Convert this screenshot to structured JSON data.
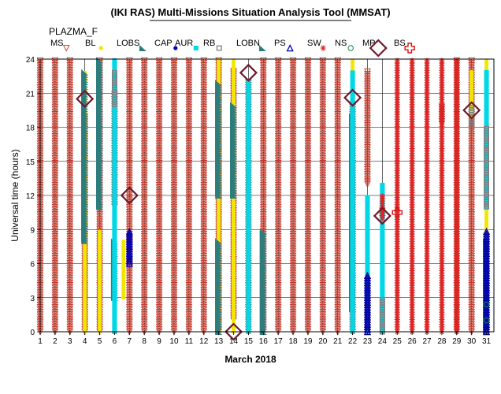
{
  "page": {
    "title": "(IKI RAS) Multi-Missions Situation Analysis Tool (MMSAT)",
    "subtitle": "PLAZMA_F"
  },
  "chart_data": {
    "type": "scatter",
    "title": "(IKI RAS) Multi-Missions Situation Analysis Tool (MMSAT)",
    "subtitle": "PLAZMA_F",
    "xlabel": "March 2018",
    "ylabel": "Universal time (hours)",
    "xlim": [
      1,
      31.5
    ],
    "ylim": [
      0,
      24
    ],
    "x_ticks": [
      "1",
      "2",
      "3",
      "4",
      "5",
      "6",
      "7",
      "8",
      "9",
      "10",
      "11",
      "12",
      "13",
      "14",
      "15",
      "16",
      "17",
      "18",
      "19",
      "20",
      "21",
      "22",
      "23",
      "24",
      "25",
      "26",
      "27",
      "28",
      "29",
      "30",
      "31"
    ],
    "y_ticks": [
      "0",
      "3",
      "6",
      "9",
      "12",
      "15",
      "18",
      "21",
      "24"
    ],
    "grid": true,
    "legend_position": "top",
    "legend": [
      {
        "key": "MS",
        "label": "MS",
        "marker": "triangle-down-open",
        "color": "#c0392b"
      },
      {
        "key": "BL",
        "label": "BL",
        "marker": "circle-filled",
        "color": "#f2e600"
      },
      {
        "key": "LOBS",
        "label": "LOBS",
        "marker": "triangle-filled",
        "color": "#2e7d7d"
      },
      {
        "key": "CAP",
        "label": "CAP",
        "marker": "circle-filled",
        "color": "#0000cc"
      },
      {
        "key": "AUR",
        "label": "AUR",
        "marker": "square-filled",
        "color": "#00d8e8"
      },
      {
        "key": "RB",
        "label": "RB",
        "marker": "square-open",
        "color": "#808080"
      },
      {
        "key": "LOBN",
        "label": "LOBN",
        "marker": "triangle-filled",
        "color": "#2e7d7d"
      },
      {
        "key": "PS",
        "label": "PS",
        "marker": "triangle-up-open",
        "color": "#0000aa"
      },
      {
        "key": "SW",
        "label": "SW",
        "marker": "asterisk",
        "color": "#dd2222"
      },
      {
        "key": "NS",
        "label": "NS",
        "marker": "circle-open",
        "color": "#0a8a4a"
      },
      {
        "key": "MP",
        "label": "MP",
        "marker": "diamond-open",
        "color": "#6b1a2a"
      },
      {
        "key": "BS",
        "label": "BS",
        "marker": "cross-open",
        "color": "#dd1111"
      }
    ],
    "series": [
      {
        "key": "MS",
        "segments": [
          [
            1,
            0,
            24
          ],
          [
            2,
            0,
            24
          ],
          [
            3,
            0,
            24
          ],
          [
            4,
            0,
            19
          ],
          [
            5,
            0,
            24
          ],
          [
            6,
            11,
            21
          ],
          [
            7,
            0,
            24
          ],
          [
            8,
            0,
            24
          ],
          [
            9,
            0,
            24
          ],
          [
            10,
            0,
            24
          ],
          [
            11,
            0,
            24
          ],
          [
            12,
            0,
            24
          ],
          [
            13,
            0,
            24
          ],
          [
            14,
            1,
            23
          ],
          [
            15,
            0,
            22
          ],
          [
            16,
            0,
            24
          ],
          [
            17,
            0,
            24
          ],
          [
            18,
            0,
            24
          ],
          [
            19,
            0,
            24
          ],
          [
            20,
            0,
            24
          ],
          [
            21,
            0,
            24
          ],
          [
            22,
            0,
            20
          ],
          [
            23,
            13,
            23
          ],
          [
            24,
            10,
            10.7
          ],
          [
            28,
            18.3,
            19.8
          ],
          [
            29,
            0,
            24
          ],
          [
            30,
            0,
            24
          ]
        ]
      },
      {
        "key": "BL",
        "segments": [
          [
            4,
            0,
            23
          ],
          [
            5,
            0,
            9
          ],
          [
            6,
            9,
            12
          ],
          [
            6.6,
            3,
            8
          ],
          [
            13,
            0,
            24
          ],
          [
            14,
            0,
            24
          ],
          [
            22,
            3,
            24
          ],
          [
            24,
            0,
            7
          ],
          [
            30,
            19,
            23
          ],
          [
            31,
            0,
            24
          ]
        ]
      },
      {
        "key": "LOBS",
        "segments": [
          [
            6,
            3,
            8
          ],
          [
            13,
            0,
            8
          ],
          [
            14,
            12,
            19
          ]
        ]
      },
      {
        "key": "LOBN",
        "segments": [
          [
            4,
            8,
            23
          ],
          [
            5,
            11,
            24
          ],
          [
            13,
            12,
            22
          ],
          [
            14,
            12,
            20
          ],
          [
            16,
            0,
            9
          ],
          [
            22,
            2,
            19
          ],
          [
            31,
            0,
            8
          ]
        ]
      },
      {
        "key": "CAP",
        "segments": [
          [
            6,
            18,
            21
          ],
          [
            15,
            20,
            22
          ]
        ]
      },
      {
        "key": "AUR",
        "segments": [
          [
            6,
            0,
            24
          ],
          [
            15,
            0,
            22
          ],
          [
            22,
            0,
            23
          ],
          [
            23,
            0,
            12
          ],
          [
            24,
            0,
            13
          ],
          [
            31,
            11,
            23
          ]
        ]
      },
      {
        "key": "RB",
        "segments": [
          [
            6,
            20,
            23
          ],
          [
            23,
            0,
            3
          ],
          [
            24,
            0,
            3
          ],
          [
            30,
            18,
            20
          ],
          [
            31,
            11,
            18
          ]
        ]
      },
      {
        "key": "PS",
        "segments": [
          [
            7,
            6,
            9
          ],
          [
            23,
            0,
            5
          ],
          [
            31,
            0,
            9
          ]
        ]
      },
      {
        "key": "SW",
        "segments": [
          [
            24,
            10,
            12
          ],
          [
            25,
            0,
            24
          ],
          [
            26,
            0,
            24
          ],
          [
            27,
            0,
            24
          ],
          [
            28,
            0,
            24
          ],
          [
            29,
            0,
            24
          ]
        ]
      },
      {
        "key": "NS",
        "points": [
          [
            31,
            1
          ],
          [
            31,
            2.4
          ]
        ]
      },
      {
        "key": "MP",
        "points": [
          [
            4,
            20.5
          ],
          [
            7,
            12
          ],
          [
            14,
            0
          ],
          [
            15,
            22.8
          ],
          [
            22,
            20.6
          ],
          [
            24,
            10.2
          ],
          [
            30,
            19.5
          ]
        ]
      },
      {
        "key": "BS",
        "points": [
          [
            25,
            10.5
          ]
        ]
      }
    ]
  }
}
